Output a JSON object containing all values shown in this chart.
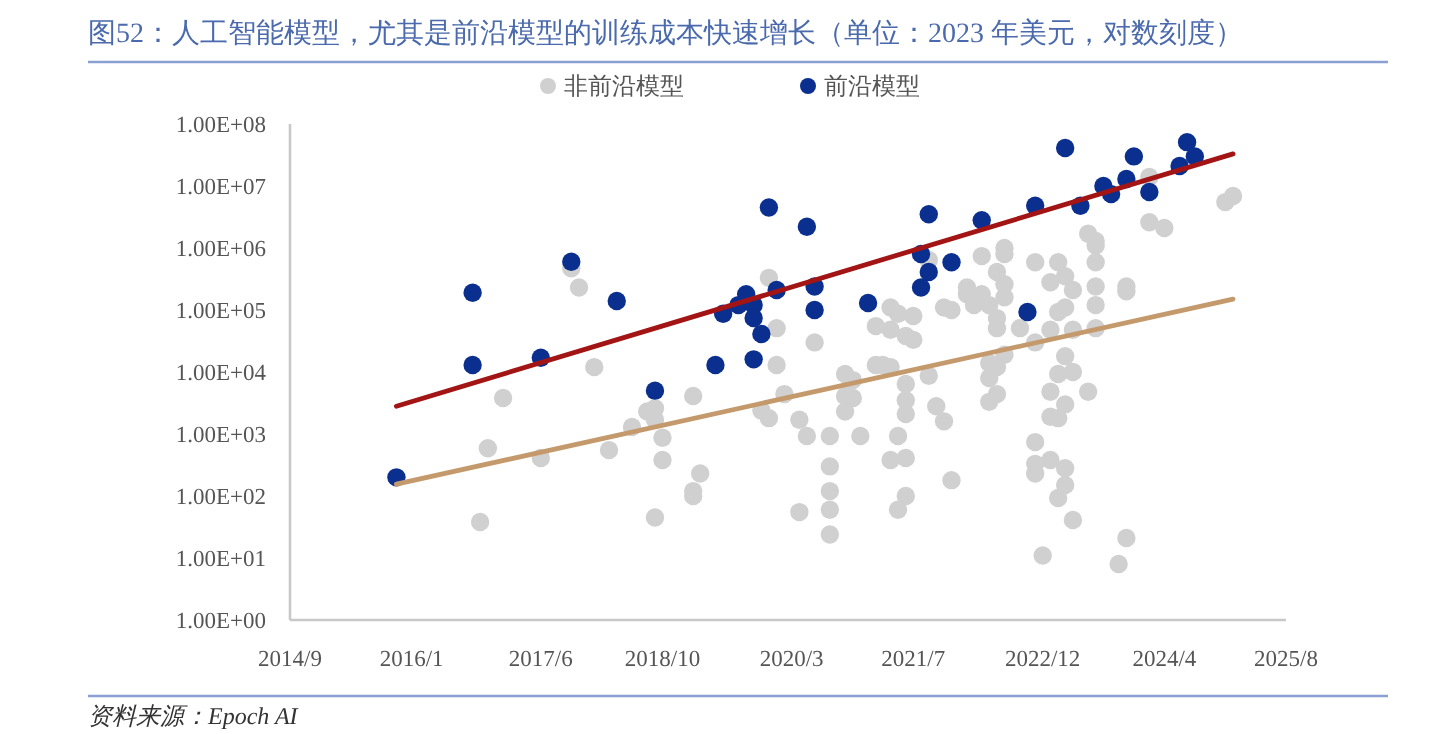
{
  "chart_data": {
    "type": "scatter",
    "title": "图52：人工智能模型，尤其是前沿模型的训练成本快速增长（单位：2023 年美元，对数刻度）",
    "annotations": [
      "资料来源：Epoch AI"
    ],
    "log": "y",
    "legend": "top",
    "grid": false,
    "xlim": [
      "2014-09",
      "2025-08"
    ],
    "xticks": [
      {
        "value": "2014-09",
        "label": "2014/9"
      },
      {
        "value": "2016-01",
        "label": "2016/1"
      },
      {
        "value": "2017-06",
        "label": "2017/6"
      },
      {
        "value": "2018-10",
        "label": "2018/10"
      },
      {
        "value": "2020-03",
        "label": "2020/3"
      },
      {
        "value": "2021-07",
        "label": "2021/7"
      },
      {
        "value": "2022-12",
        "label": "2022/12"
      },
      {
        "value": "2024-04",
        "label": "2024/4"
      },
      {
        "value": "2025-08",
        "label": "2025/8"
      }
    ],
    "ylim": [
      1,
      100000000
    ],
    "yticks": [
      {
        "value": 1,
        "label": "1.00E+00"
      },
      {
        "value": 10,
        "label": "1.00E+01"
      },
      {
        "value": 100,
        "label": "1.00E+02"
      },
      {
        "value": 1000,
        "label": "1.00E+03"
      },
      {
        "value": 10000,
        "label": "1.00E+04"
      },
      {
        "value": 100000,
        "label": "1.00E+05"
      },
      {
        "value": 1000000,
        "label": "1.00E+06"
      },
      {
        "value": 10000000,
        "label": "1.00E+07"
      },
      {
        "value": 100000000,
        "label": "1.00E+08"
      }
    ],
    "series": [
      {
        "name": "非前沿模型",
        "color": "#d0d0d0",
        "marker": "circle",
        "x": [
          "2017-10",
          "2017-11",
          "2018-01",
          "2017-01",
          "2016-11",
          "2017-06",
          "2018-03",
          "2018-06",
          "2018-08",
          "2018-09",
          "2018-09",
          "2018-10",
          "2018-10",
          "2018-09",
          "2016-10",
          "2019-02",
          "2019-03",
          "2019-02",
          "2019-02",
          "2019-12",
          "2020-01",
          "2020-01",
          "2020-02",
          "2019-11",
          "2019-12",
          "2020-04",
          "2020-05",
          "2020-06",
          "2020-04",
          "2020-08",
          "2020-08",
          "2020-08",
          "2020-08",
          "2020-08",
          "2020-10",
          "2020-10",
          "2020-11",
          "2020-11",
          "2020-10",
          "2020-12",
          "2021-02",
          "2021-02",
          "2021-03",
          "2021-04",
          "2021-05",
          "2021-07",
          "2021-04",
          "2021-06",
          "2021-07",
          "2021-04",
          "2021-06",
          "2021-06",
          "2021-06",
          "2021-05",
          "2021-04",
          "2021-06",
          "2021-06",
          "2021-05",
          "2021-09",
          "2021-11",
          "2021-12",
          "2021-10",
          "2021-11",
          "2021-12",
          "2021-09",
          "2022-04",
          "2022-07",
          "2022-07",
          "2022-06",
          "2022-07",
          "2022-02",
          "2022-02",
          "2022-04",
          "2022-07",
          "2022-03",
          "2022-05",
          "2022-06",
          "2022-06",
          "2022-09",
          "2022-07",
          "2022-05",
          "2022-06",
          "2022-05",
          "2022-06",
          "2022-05",
          "2022-11",
          "2023-02",
          "2023-01",
          "2023-03",
          "2023-04",
          "2022-11",
          "2023-02",
          "2023-03",
          "2023-01",
          "2023-04",
          "2023-02",
          "2023-03",
          "2023-04",
          "2023-01",
          "2023-01",
          "2023-02",
          "2023-03",
          "2023-06",
          "2022-11",
          "2022-11",
          "2022-11",
          "2023-01",
          "2023-03",
          "2023-03",
          "2023-02",
          "2023-04",
          "2022-12",
          "2023-06",
          "2023-07",
          "2023-07",
          "2023-07",
          "2023-07",
          "2023-07",
          "2023-07",
          "2023-11",
          "2023-11",
          "2024-02",
          "2024-02",
          "2024-04",
          "2023-11",
          "2023-10",
          "2024-12",
          "2025-01"
        ],
        "values": [
          470000,
          230000,
          12000,
          3800,
          590,
          410,
          550,
          1300,
          2300,
          2600,
          1700,
          870,
          380,
          45,
          38,
          4100,
          230,
          120,
          100,
          330000,
          51000,
          13000,
          4400,
          2400,
          1800,
          1700,
          930,
          30000,
          55,
          930,
          300,
          120,
          60,
          24,
          9300,
          4100,
          7400,
          3800,
          2300,
          930,
          55000,
          13000,
          13000,
          110000,
          87000,
          80000,
          48000,
          38000,
          33000,
          12000,
          6400,
          3500,
          2100,
          930,
          380,
          410,
          100,
          60,
          8700,
          110000,
          100000,
          2800,
          1600,
          180,
          640000,
          740000,
          1000000,
          800000,
          410000,
          260000,
          230000,
          180000,
          180000,
          160000,
          120000,
          120000,
          74000,
          51000,
          51000,
          19000,
          14000,
          12000,
          8000,
          4400,
          3300,
          590000,
          590000,
          280000,
          350000,
          210000,
          30000,
          93000,
          110000,
          48000,
          48000,
          9300,
          18000,
          10000,
          4800,
          1900,
          1800,
          3000,
          4800,
          740,
          330,
          230,
          380,
          280,
          150,
          93,
          41,
          11,
          1700000,
          1300000,
          1100000,
          590000,
          240000,
          120000,
          51000,
          240000,
          200000,
          14000000,
          2600000,
          2100000,
          21,
          8,
          5500000,
          6900000
        ]
      },
      {
        "name": "前沿模型",
        "color": "#0b2f8e",
        "marker": "circle",
        "x": [
          "2015-11",
          "2016-09",
          "2016-09",
          "2017-10",
          "2017-06",
          "2018-04",
          "2018-09",
          "2019-12",
          "2020-05",
          "2019-09",
          "2019-06",
          "2019-08",
          "2019-10",
          "2019-10",
          "2019-11",
          "2019-05",
          "2019-10",
          "2020-01",
          "2020-06",
          "2020-06",
          "2021-01",
          "2021-09",
          "2021-08",
          "2021-09",
          "2021-08",
          "2021-12",
          "2022-04",
          "2022-11",
          "2023-03",
          "2023-05",
          "2022-10",
          "2023-08",
          "2023-09",
          "2023-11",
          "2023-12",
          "2024-02",
          "2024-06",
          "2024-07",
          "2024-08"
        ],
        "values": [
          200,
          190000,
          13000,
          600000,
          17000,
          140000,
          5000,
          4500000,
          2200000,
          180000,
          87000,
          120000,
          120000,
          74000,
          41000,
          13000,
          16000,
          210000,
          240000,
          100000,
          130000,
          3500000,
          800000,
          410000,
          230000,
          590000,
          2800000,
          4800000,
          41000000,
          4800000,
          93000,
          10000000,
          7400000,
          13000000,
          30000000,
          8000000,
          21000000,
          51000000,
          30000000
        ]
      },
      {
        "type": "line",
        "color": "#a31515",
        "x": [
          "2015-11",
          "2025-01"
        ],
        "values": [
          2800,
          33000000
        ]
      },
      {
        "type": "line",
        "color": "#c49a6c",
        "x": [
          "2015-11",
          "2025-01"
        ],
        "values": [
          155,
          150000
        ]
      }
    ]
  }
}
